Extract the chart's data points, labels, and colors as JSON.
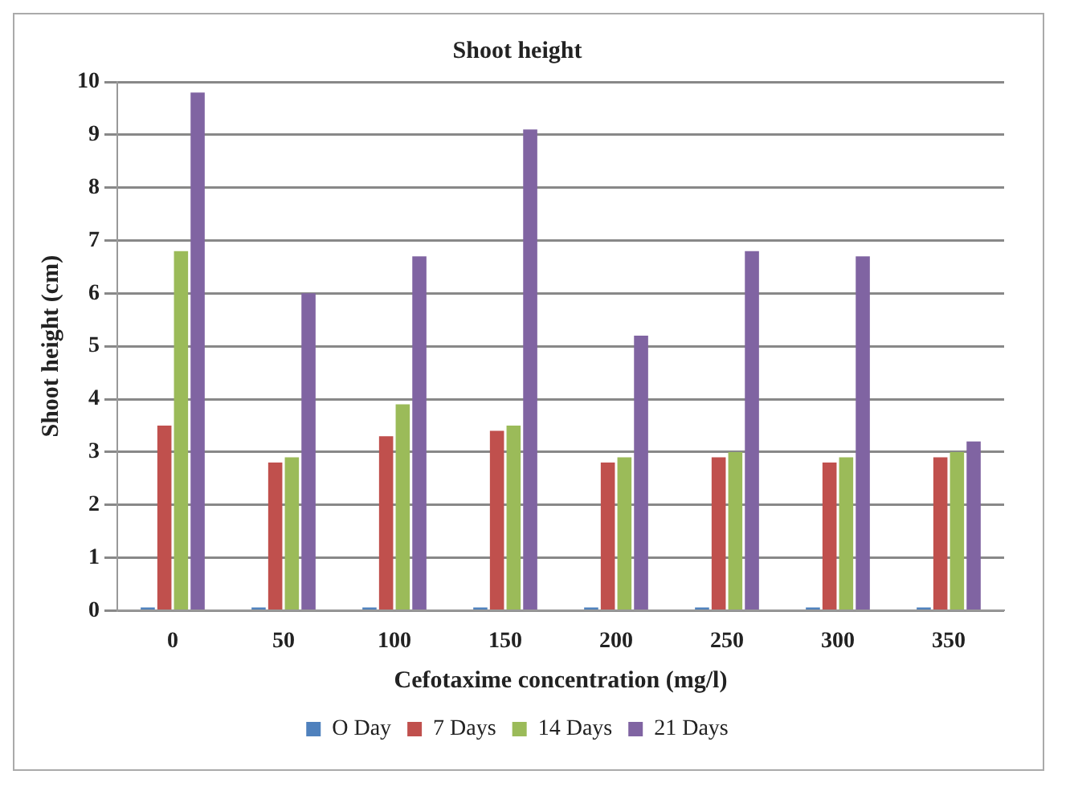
{
  "chart_data": {
    "type": "bar",
    "title": "Shoot height",
    "xlabel": "Cefotaxime concentration (mg/l)",
    "ylabel": "Shoot height (cm)",
    "categories": [
      "0",
      "50",
      "100",
      "150",
      "200",
      "250",
      "300",
      "350"
    ],
    "series": [
      {
        "name": "O Day",
        "color": "#4f81bd",
        "values": [
          0,
          0,
          0,
          0,
          0,
          0,
          0,
          0
        ]
      },
      {
        "name": "7 Days",
        "color": "#c0504d",
        "values": [
          3.5,
          2.8,
          3.3,
          3.4,
          2.8,
          2.9,
          2.8,
          2.9
        ]
      },
      {
        "name": "14 Days",
        "color": "#9bbb59",
        "values": [
          6.8,
          2.9,
          3.9,
          3.5,
          2.9,
          3.0,
          2.9,
          3.0
        ]
      },
      {
        "name": "21 Days",
        "color": "#8064a2",
        "values": [
          9.8,
          6.0,
          6.7,
          9.1,
          5.2,
          6.8,
          6.7,
          3.2
        ]
      }
    ],
    "ylim": [
      0,
      10
    ],
    "yticks": [
      0,
      1,
      2,
      3,
      4,
      5,
      6,
      7,
      8,
      9,
      10
    ],
    "grid": "y",
    "legend": "bottom"
  }
}
